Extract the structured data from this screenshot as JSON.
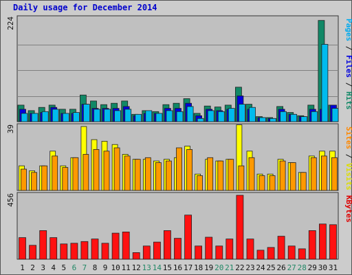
{
  "chart_data": {
    "type": "bar",
    "title": "Daily usage for December 2014",
    "categories": [
      "1",
      "2",
      "3",
      "4",
      "5",
      "6",
      "7",
      "8",
      "9",
      "10",
      "11",
      "12",
      "13",
      "14",
      "15",
      "16",
      "17",
      "18",
      "19",
      "20",
      "21",
      "22",
      "23",
      "24",
      "25",
      "26",
      "27",
      "28",
      "29",
      "30",
      "31"
    ],
    "weekend_days": [
      "6",
      "7",
      "13",
      "14",
      "20",
      "21",
      "27",
      "28"
    ],
    "panels": [
      {
        "id": "hits-files-pages",
        "axis_max_label": "224",
        "ylim": [
          0,
          224
        ],
        "label_parts": [
          {
            "text": "Pages",
            "color": "#00aaee"
          },
          {
            "text": " / ",
            "color": "#111111"
          },
          {
            "text": "Files",
            "color": "#0000dd"
          },
          {
            "text": " / ",
            "color": "#111111"
          },
          {
            "text": "Hits",
            "color": "#118866"
          }
        ],
        "series": [
          {
            "name": "Hits",
            "color": "#118866",
            "values": [
              36,
              24,
              31,
              36,
              27,
              27,
              58,
              45,
              37,
              40,
              45,
              16,
              24,
              22,
              37,
              40,
              50,
              18,
              34,
              32,
              36,
              75,
              38,
              11,
              9,
              33,
              20,
              13,
              36,
              220,
              36
            ]
          },
          {
            "name": "Files",
            "color": "#0000dd",
            "values": [
              27,
              18,
              20,
              31,
              18,
              18,
              38,
              29,
              29,
              29,
              33,
              13,
              18,
              18,
              29,
              29,
              40,
              13,
              27,
              24,
              27,
              56,
              27,
              9,
              7,
              27,
              16,
              11,
              27,
              27,
              36
            ]
          },
          {
            "name": "Pages",
            "color": "#00bbee",
            "values": [
              18,
              18,
              22,
              27,
              18,
              20,
              38,
              27,
              27,
              24,
              27,
              16,
              24,
              18,
              24,
              22,
              33,
              7,
              24,
              22,
              29,
              38,
              31,
              9,
              7,
              22,
              16,
              11,
              22,
              168,
              29
            ]
          }
        ]
      },
      {
        "id": "visits-sites",
        "axis_max_label": "39",
        "ylim": [
          0,
          39
        ],
        "label_parts": [
          {
            "text": "Sites",
            "color": "#ff8800"
          },
          {
            "text": " / ",
            "color": "#111111"
          },
          {
            "text": "Visits",
            "color": "#dddd00"
          }
        ],
        "series": [
          {
            "name": "Visits",
            "color": "#ffff00",
            "values": [
              15,
              12,
              15,
              24,
              15,
              20,
              39,
              31,
              30,
              28,
              22,
              19,
              19,
              18,
              19,
              20,
              27,
              10,
              19,
              18,
              19,
              40,
              24,
              10,
              10,
              19,
              17,
              11,
              21,
              24,
              24
            ]
          },
          {
            "name": "Sites",
            "color": "#ff9900",
            "values": [
              13,
              11,
              15,
              21,
              14,
              20,
              22,
              25,
              24,
              26,
              21,
              19,
              20,
              17,
              18,
              26,
              25,
              9,
              20,
              18,
              19,
              15,
              20,
              9,
              9,
              18,
              17,
              11,
              20,
              21,
              20
            ]
          }
        ]
      },
      {
        "id": "kbytes",
        "axis_max_label": "456",
        "ylim": [
          0,
          456
        ],
        "label_parts": [
          {
            "text": "KBytes",
            "color": "#dd0000"
          }
        ],
        "series": [
          {
            "name": "KBytes",
            "color": "#ff1111",
            "values": [
              154,
              99,
              204,
              154,
              109,
              114,
              126,
              144,
              114,
              186,
              194,
              47,
              94,
              122,
              204,
              149,
              315,
              94,
              157,
              94,
              144,
              456,
              144,
              64,
              84,
              164,
              94,
              74,
              204,
              251,
              246
            ]
          }
        ]
      }
    ]
  }
}
